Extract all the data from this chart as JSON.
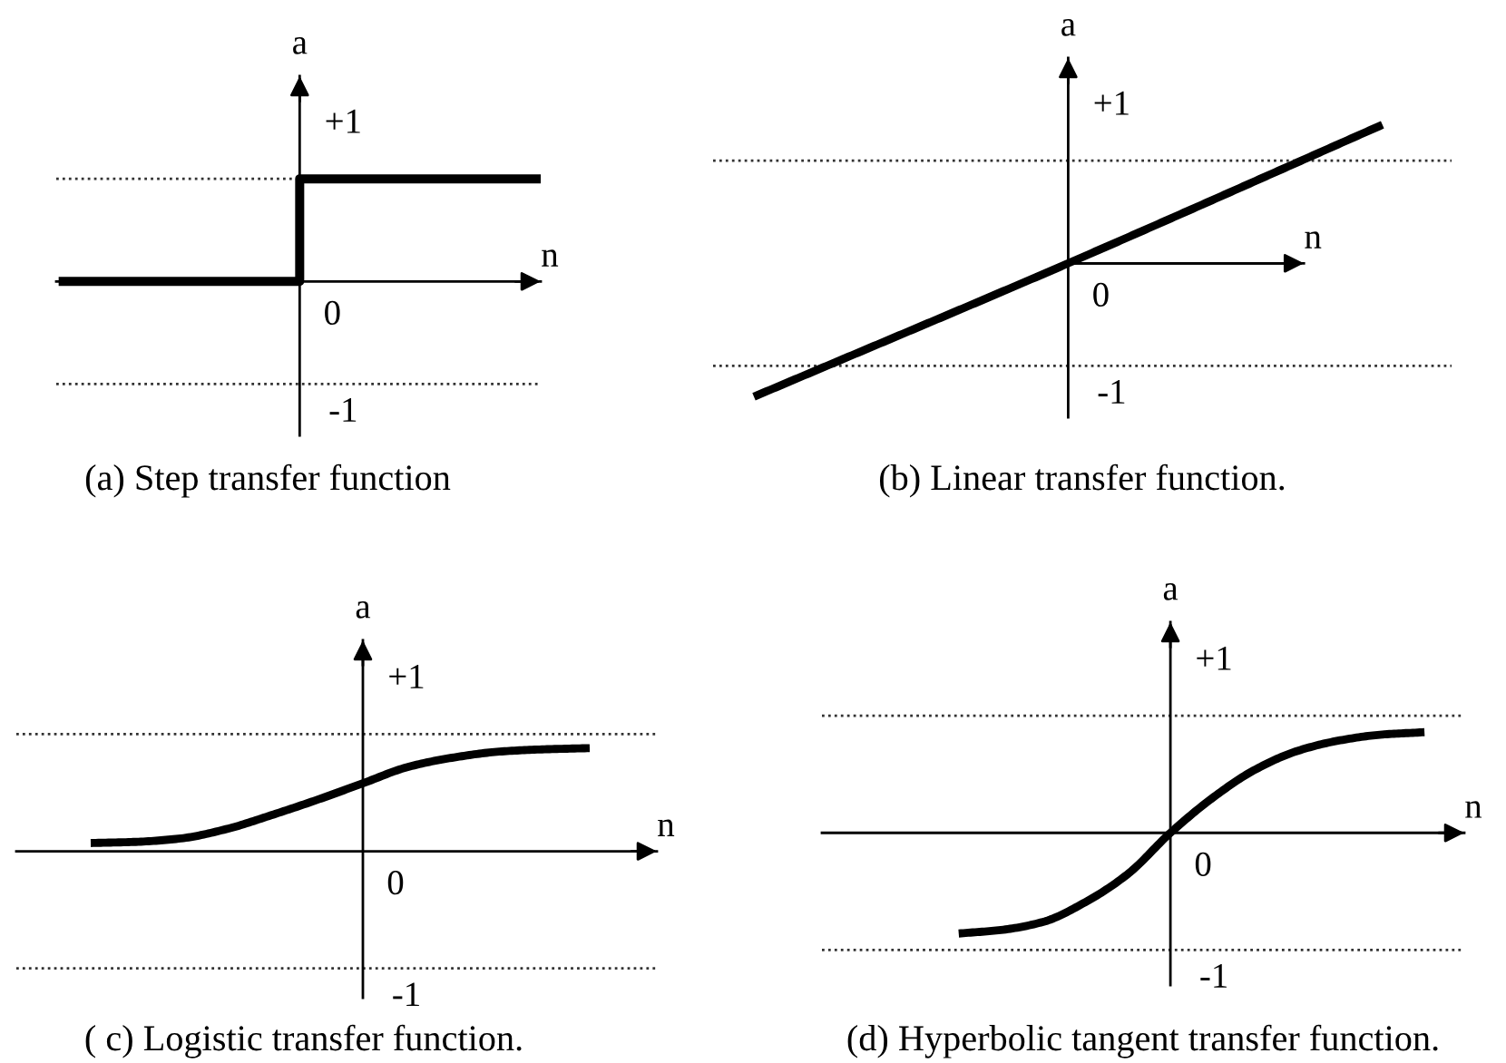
{
  "chart_data": [
    {
      "type": "step",
      "title": "(a) Step transfer function",
      "xlabel": "n",
      "ylabel": "a",
      "categories": [
        null,
        null,
        null
      ],
      "values": [
        0,
        1,
        1
      ],
      "color": "#000000",
      "ylim": [
        -1.5,
        2
      ],
      "annotations": [
        "0"
      ],
      "ref_lines": [
        {
          "axis": "y",
          "value": 1,
          "label": "+1",
          "color": "#333333",
          "line_style": "dotted"
        },
        {
          "axis": "y",
          "value": -1,
          "label": "-1",
          "color": "#333333",
          "line_style": "dotted"
        }
      ]
    },
    {
      "type": "line",
      "title": "(b) Linear transfer function.",
      "xlabel": "n",
      "ylabel": "a",
      "categories": [
        null,
        null,
        null
      ],
      "values": [
        -1.3,
        0,
        1.35
      ],
      "color": "#000000",
      "ylim": [
        -1.5,
        2
      ],
      "annotations": [
        "0"
      ],
      "ref_lines": [
        {
          "axis": "y",
          "value": 1,
          "label": "+1",
          "color": "#333333",
          "line_style": "dotted"
        },
        {
          "axis": "y",
          "value": -1,
          "label": "-1",
          "color": "#333333",
          "line_style": "dotted"
        }
      ]
    },
    {
      "type": "line",
      "title": "( c) Logistic transfer function.",
      "xlabel": "n",
      "ylabel": "a",
      "categories": [
        null,
        null,
        null,
        null,
        null,
        null,
        null,
        null,
        null,
        null,
        null,
        null
      ],
      "values": [
        0.07,
        0.08,
        0.11,
        0.19,
        0.31,
        0.44,
        0.58,
        0.72,
        0.8,
        0.85,
        0.87,
        0.88
      ],
      "color": "#000000",
      "ylim": [
        -1.25,
        1.8
      ],
      "annotations": [
        "0"
      ],
      "ref_lines": [
        {
          "axis": "y",
          "value": 1,
          "label": "+1",
          "color": "#333333",
          "line_style": "dotted"
        },
        {
          "axis": "y",
          "value": -1,
          "label": "-1",
          "color": "#333333",
          "line_style": "dotted"
        }
      ]
    },
    {
      "type": "line",
      "title": "(d) Hyperbolic tangent transfer function.",
      "xlabel": "n",
      "ylabel": "a",
      "categories": [
        null,
        null,
        null,
        null,
        null,
        null,
        null,
        null,
        null,
        null,
        null,
        null
      ],
      "values": [
        -0.86,
        -0.83,
        -0.76,
        -0.59,
        -0.35,
        0,
        0.3,
        0.54,
        0.7,
        0.79,
        0.84,
        0.86
      ],
      "color": "#000000",
      "ylim": [
        -1.3,
        1.8
      ],
      "annotations": [
        "0"
      ],
      "ref_lines": [
        {
          "axis": "y",
          "value": 1,
          "label": "+1",
          "color": "#333333",
          "line_style": "dotted"
        },
        {
          "axis": "y",
          "value": -1,
          "label": "-1",
          "color": "#333333",
          "line_style": "dotted"
        }
      ]
    }
  ]
}
